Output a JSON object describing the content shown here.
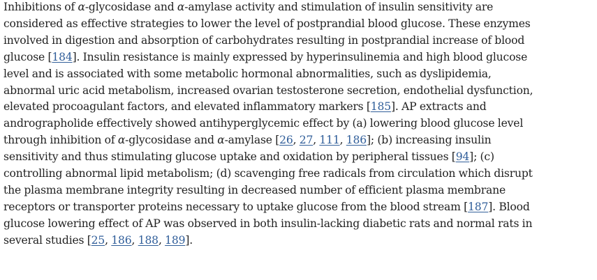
{
  "paragraph": {
    "lines": [
      [
        {
          "text": "Inhibitions of "
        },
        {
          "text": "α",
          "style": "greek"
        },
        {
          "text": "-glycosidase and "
        },
        {
          "text": "α",
          "style": "greek"
        },
        {
          "text": "-amylase activity and stimulation of insulin sensitivity are"
        }
      ],
      [
        {
          "text": "considered as effective strategies to lower the level of postprandial blood glucose. These enzymes"
        }
      ],
      [
        {
          "text": "involved in digestion and absorption of carbohydrates resulting in postprandial increase of blood"
        }
      ],
      [
        {
          "text": "glucose ["
        },
        {
          "text": "184",
          "link": true
        },
        {
          "text": "]. Insulin resistance is mainly expressed by hyperinsulinemia and high blood glucose"
        }
      ],
      [
        {
          "text": "level and is associated with some metabolic hormonal abnormalities, such as dyslipidemia,"
        }
      ],
      [
        {
          "text": "abnormal uric acid metabolism, increased ovarian testosterone secretion, endothelial dysfunction,"
        }
      ],
      [
        {
          "text": "elevated procoagulant factors, and elevated inflammatory markers ["
        },
        {
          "text": "185",
          "link": true
        },
        {
          "text": "]. AP extracts and"
        }
      ],
      [
        {
          "text": "andrographolide effectively showed antihyperglycemic effect by (a) lowering blood glucose level"
        }
      ],
      [
        {
          "text": "through inhibition of "
        },
        {
          "text": "α",
          "style": "greek"
        },
        {
          "text": "-glycosidase and "
        },
        {
          "text": "α",
          "style": "greek"
        },
        {
          "text": "-amylase ["
        },
        {
          "text": "26",
          "link": true
        },
        {
          "text": ", "
        },
        {
          "text": "27",
          "link": true
        },
        {
          "text": ", "
        },
        {
          "text": "111",
          "link": true
        },
        {
          "text": ", "
        },
        {
          "text": "186",
          "link": true
        },
        {
          "text": "]; (b) increasing insulin"
        }
      ],
      [
        {
          "text": "sensitivity and thus stimulating glucose uptake and oxidation by peripheral tissues ["
        },
        {
          "text": "94",
          "link": true
        },
        {
          "text": "]; (c)"
        }
      ],
      [
        {
          "text": "controlling abnormal lipid metabolism; (d) scavenging free radicals from circulation which disrupt"
        }
      ],
      [
        {
          "text": "the plasma membrane integrity resulting in decreased number of efficient plasma membrane"
        }
      ],
      [
        {
          "text": "receptors or transporter proteins necessary to uptake glucose from the blood stream ["
        },
        {
          "text": "187",
          "link": true
        },
        {
          "text": "]. Blood"
        }
      ],
      [
        {
          "text": "glucose lowering effect of AP was observed in both insulin-lacking diabetic rats and normal rats in"
        }
      ],
      [
        {
          "text": "several studies ["
        },
        {
          "text": "25",
          "link": true
        },
        {
          "text": ", "
        },
        {
          "text": "186",
          "link": true
        },
        {
          "text": ", "
        },
        {
          "text": "188",
          "link": true
        },
        {
          "text": ", "
        },
        {
          "text": "189",
          "link": true
        },
        {
          "text": "]."
        }
      ]
    ]
  }
}
